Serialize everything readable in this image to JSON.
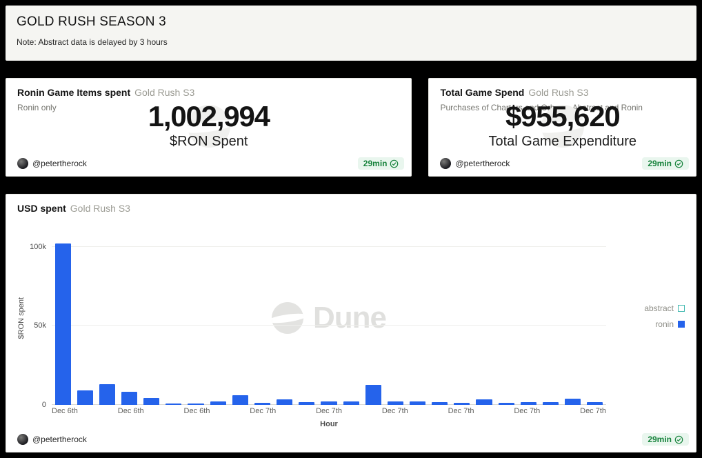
{
  "header": {
    "title": "GOLD RUSH SEASON 3",
    "note": "Note: Abstract data is delayed by 3 hours"
  },
  "counters": {
    "ron": {
      "title": "Ronin Game Items spent",
      "context": "Gold Rush S3",
      "subtitle": "Ronin only",
      "value": "1,002,994",
      "label": "$RON Spent",
      "author": "@petertherock",
      "refresh": "29min"
    },
    "usd": {
      "title": "Total Game Spend",
      "context": "Gold Rush S3",
      "subtitle": "Purchases of Charters and Orbs on Abstract and Ronin",
      "value": "$955,620",
      "label": "Total Game Expenditure",
      "author": "@petertherock",
      "refresh": "29min"
    }
  },
  "chart_card": {
    "title": "USD spent",
    "context": "Gold Rush S3",
    "author": "@petertherock",
    "refresh": "29min",
    "watermark": "Dune"
  },
  "chart_data": {
    "type": "bar",
    "title": "USD spent",
    "xlabel": "Hour",
    "ylabel": "$RON spent",
    "ylim": [
      0,
      110000
    ],
    "grid": true,
    "legend_position": "right",
    "yticks": [
      {
        "value": 0,
        "label": "0"
      },
      {
        "value": 50000,
        "label": "50k"
      },
      {
        "value": 100000,
        "label": "100k"
      }
    ],
    "x_tick_labels": [
      "Dec 6th",
      "Dec 6th",
      "Dec 6th",
      "Dec 7th",
      "Dec 7th",
      "Dec 7th",
      "Dec 7th",
      "Dec 7th",
      "Dec 7th"
    ],
    "legend": [
      {
        "name": "abstract",
        "color": "#3fb8af",
        "filled": false
      },
      {
        "name": "ronin",
        "color": "#2563eb",
        "filled": true
      }
    ],
    "series": [
      {
        "name": "ronin",
        "color": "#2563eb",
        "values": [
          102000,
          9000,
          13000,
          8000,
          4200,
          800,
          1000,
          2200,
          6200,
          1300,
          3600,
          1800,
          1900,
          2300,
          12500,
          1900,
          2300,
          1800,
          1300,
          3300,
          1200,
          1700,
          1800,
          3800,
          1800
        ]
      }
    ]
  },
  "colors": {
    "accent_green": "#17833c",
    "bar_blue": "#2563eb",
    "page_bg": "#000000",
    "card_bg": "#ffffff"
  }
}
